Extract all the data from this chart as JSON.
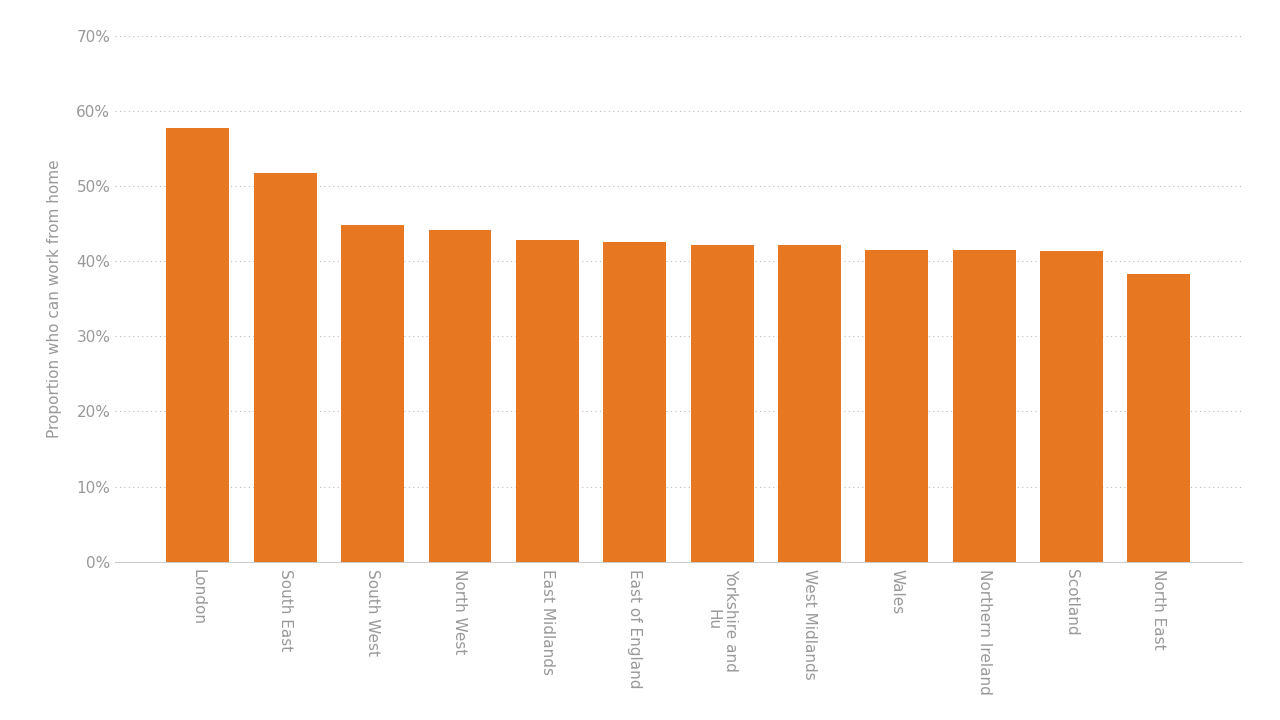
{
  "categories": [
    "London",
    "South East",
    "South West",
    "North West",
    "East Midlands",
    "East of England",
    "Yorkshire and\nHu",
    "West Midlands",
    "Wales",
    "Northern Ireland",
    "Scotland",
    "North East"
  ],
  "values": [
    0.578,
    0.518,
    0.448,
    0.441,
    0.428,
    0.426,
    0.421,
    0.421,
    0.415,
    0.415,
    0.413,
    0.383
  ],
  "bar_color": "#E87722",
  "ylabel": "Proportion who can work from home",
  "ylim": [
    0,
    0.7
  ],
  "yticks": [
    0.0,
    0.1,
    0.2,
    0.3,
    0.4,
    0.5,
    0.6,
    0.7
  ],
  "background_color": "#ffffff",
  "grid_color": "#bbbbbb",
  "tick_label_color": "#999999",
  "axis_label_color": "#999999",
  "bar_width": 0.72,
  "tick_fontsize": 11,
  "ylabel_fontsize": 11
}
